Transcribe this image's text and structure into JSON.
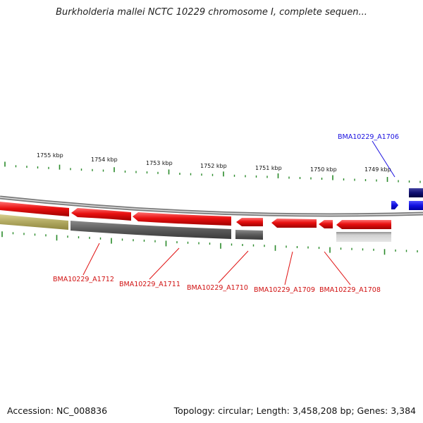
{
  "title": "Burkholderia mallei NCTC 10229 chromosome I, complete sequen...",
  "footer": {
    "accession": "Accession: NC_008836",
    "summary": "Topology: circular; Length: 3,458,208 bp; Genes: 3,384"
  },
  "colors": {
    "forward_gene": "#1a10e0",
    "reverse_gene": "#e01010",
    "reverse_cds": "#606060",
    "tick": "#2a8a2a",
    "backbone": "#9a9a9a",
    "other_gene": "#b0a860"
  },
  "ruler": {
    "labels": [
      {
        "kbp": 1755,
        "text": "1755 kbp"
      },
      {
        "kbp": 1754,
        "text": "1754 kbp"
      },
      {
        "kbp": 1753,
        "text": "1753 kbp"
      },
      {
        "kbp": 1752,
        "text": "1752 kbp"
      },
      {
        "kbp": 1751,
        "text": "1751 kbp"
      },
      {
        "kbp": 1750,
        "text": "1750 kbp"
      },
      {
        "kbp": 1749,
        "text": "1749 kbp"
      }
    ]
  },
  "gene_labels": [
    {
      "text": "BMA10229_A1706",
      "strand": "forward"
    },
    {
      "text": "BMA10229_A1712",
      "strand": "reverse"
    },
    {
      "text": "BMA10229_A1711",
      "strand": "reverse"
    },
    {
      "text": "BMA10229_A1710",
      "strand": "reverse"
    },
    {
      "text": "BMA10229_A1709",
      "strand": "reverse"
    },
    {
      "text": "BMA10229_A1708",
      "strand": "reverse"
    }
  ]
}
